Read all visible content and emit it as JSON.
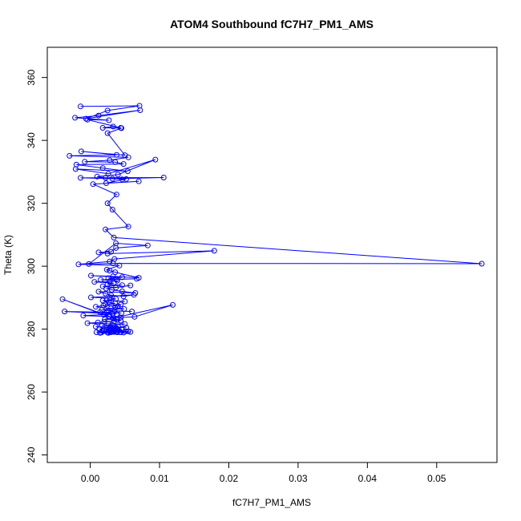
{
  "chart_data": {
    "type": "scatter",
    "title": "ATOM4 Southbound fC7H7_PM1_AMS",
    "xlabel": "fC7H7_PM1_AMS",
    "ylabel": "Theta (K)",
    "xlim": [
      -0.0062,
      0.0587
    ],
    "ylim": [
      237.6,
      369.6
    ],
    "x_ticks": [
      0.0,
      0.01,
      0.02,
      0.03,
      0.04,
      0.05
    ],
    "x_tick_labels": [
      "0.00",
      "0.01",
      "0.02",
      "0.03",
      "0.04",
      "0.05"
    ],
    "y_ticks": [
      240,
      260,
      280,
      300,
      320,
      340,
      360
    ],
    "y_tick_labels": [
      "240",
      "260",
      "280",
      "300",
      "320",
      "340",
      "360"
    ],
    "grid": false,
    "legend": "none",
    "series_color": "#0000ff",
    "marker": "open-circle",
    "connected": true,
    "series": [
      {
        "x": [
          -0.0014,
          0.0071,
          0.0025,
          -0.0006,
          0.0072,
          0.0012,
          -0.0022,
          0.0027,
          -0.0004,
          0.0044,
          0.0033,
          0.0018,
          0.0045,
          0.0025,
          0.005,
          -0.0013,
          0.0038,
          -0.003,
          0.0055,
          0.0028,
          -0.0008,
          0.0036,
          0.0048,
          -0.002,
          0.0018,
          0.0054,
          -0.0021,
          0.0026,
          0.0094,
          0.004,
          0.001,
          0.0022,
          0.0046,
          0.0032,
          0.0106,
          -0.0014,
          0.0052,
          0.0023,
          0.007,
          0.0004,
          0.0038,
          0.0025,
          0.0032,
          0.0055,
          0.0022,
          0.0034,
          0.0565,
          0.0033,
          -0.0002,
          0.0037,
          0.0083,
          0.0037,
          0.003,
          0.0012,
          0.0025,
          0.0179,
          0.0035,
          0.0028,
          -0.0017,
          0.0042,
          0.0024,
          0.0028,
          0.0036,
          0.007,
          0.0033,
          0.0001,
          0.0046,
          0.0026,
          0.0038,
          0.0067,
          0.0015,
          0.0039,
          0.0028,
          0.0006,
          0.0034,
          0.0025,
          0.0046,
          0.0018,
          0.0037,
          0.0058,
          0.0023,
          0.0031,
          0.0046,
          0.0065,
          0.0012,
          0.0022,
          0.003,
          0.0048,
          0.0063,
          0.0001,
          0.0028,
          0.0037,
          0.0024,
          0.005,
          0.0018,
          0.0027,
          0.0036,
          0.0022,
          0.0044,
          0.004,
          0.0019,
          0.0008,
          0.003,
          0.0036,
          0.0049,
          0.0017,
          0.0026,
          0.006,
          0.0035,
          0.0024,
          0.0045,
          0.0014,
          -0.0037,
          0.0032,
          0.002,
          0.0038,
          -0.001,
          0.0028,
          0.0044,
          0.0064,
          0.0119,
          0.0033,
          0.0021,
          0.0039,
          -0.004,
          0.0044,
          0.002,
          0.0034,
          0.0011,
          -0.0004,
          0.0026,
          0.005,
          0.0032,
          0.0017,
          0.004,
          0.0029,
          0.0052,
          0.0008,
          0.0038,
          0.0013,
          0.003,
          0.0023,
          0.0045,
          0.0033,
          0.0018,
          0.0041,
          0.0027,
          0.0036,
          0.0009,
          0.0051,
          0.0037,
          0.0025,
          0.0044,
          0.0014,
          0.0031,
          0.0039,
          0.0055,
          0.0048,
          0.002,
          0.0034,
          0.0026,
          0.0043,
          0.0038,
          0.0016,
          0.0058,
          0.003
        ],
        "y": [
          350.8,
          351.0,
          349.5,
          346.9,
          349.6,
          347.9,
          347.2,
          346.4,
          346.6,
          344.0,
          344.4,
          344.0,
          343.9,
          342.3,
          335.3,
          336.5,
          335.4,
          335.1,
          334.6,
          333.7,
          333.2,
          333.1,
          332.5,
          332.3,
          331.2,
          330.2,
          330.9,
          329.4,
          333.9,
          329.1,
          328.5,
          328.1,
          327.6,
          327.8,
          328.2,
          328.1,
          327.7,
          326.4,
          327.0,
          326.1,
          322.8,
          320.0,
          318.0,
          312.6,
          311.7,
          309.1,
          300.8,
          300.9,
          300.7,
          307.3,
          306.6,
          305.8,
          304.6,
          304.4,
          304.0,
          304.9,
          302.3,
          301.5,
          300.6,
          300.2,
          298.9,
          298.6,
          298.1,
          296.3,
          296.8,
          297.0,
          296.5,
          296.2,
          295.8,
          296.0,
          295.7,
          295.4,
          295.1,
          295.0,
          294.6,
          294.2,
          294.0,
          293.6,
          293.2,
          293.9,
          292.9,
          292.5,
          292.0,
          291.5,
          291.9,
          291.3,
          290.8,
          290.4,
          290.9,
          290.1,
          289.9,
          289.6,
          289.2,
          288.8,
          289.1,
          288.5,
          288.2,
          287.9,
          287.8,
          287.3,
          287.5,
          287.1,
          286.6,
          286.9,
          286.4,
          286.2,
          285.9,
          285.6,
          285.8,
          285.3,
          285.1,
          285.4,
          285.6,
          284.9,
          284.6,
          284.8,
          284.3,
          284.0,
          283.7,
          283.9,
          287.7,
          283.5,
          283.2,
          282.9,
          289.5,
          282.7,
          282.3,
          282.5,
          282.1,
          281.9,
          281.7,
          281.6,
          281.3,
          281.1,
          280.9,
          280.7,
          280.5,
          280.8,
          280.3,
          280.0,
          280.4,
          279.8,
          280.1,
          279.6,
          279.4,
          279.7,
          279.2,
          279.5,
          279.0,
          279.3,
          279.1,
          278.9,
          279.0,
          278.8,
          279.2,
          279.0,
          279.3,
          278.9,
          279.4,
          279.1,
          278.8,
          279.0,
          279.2,
          278.9,
          279.1,
          279.0
        ]
      }
    ]
  }
}
